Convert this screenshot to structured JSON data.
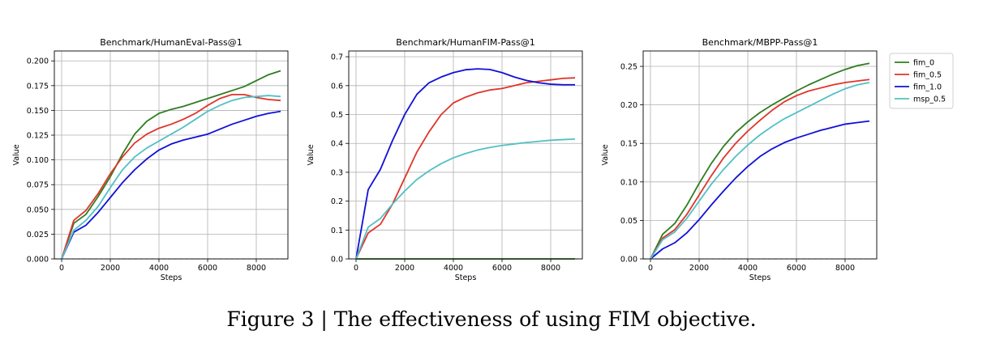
{
  "caption": "Figure 3 | The effectiveness of using FIM objective.",
  "legend": {
    "location": "upper right, outside the third chart",
    "entries": [
      {
        "name": "fim_0",
        "color": "#2e7d1f"
      },
      {
        "name": "fim_0.5",
        "color": "#e0342a"
      },
      {
        "name": "fim_1.0",
        "color": "#1010d8"
      },
      {
        "name": "msp_0.5",
        "color": "#52c0c4"
      }
    ]
  },
  "chart_data": [
    {
      "type": "line",
      "title": "Benchmark/HumanEval-Pass@1",
      "xlabel": "Steps",
      "ylabel": "Value",
      "xlim": [
        -300,
        9300
      ],
      "ylim": [
        0.0,
        0.21
      ],
      "xticks": [
        0,
        2000,
        4000,
        6000,
        8000
      ],
      "xtick_labels": [
        "0",
        "2000",
        "4000",
        "6000",
        "8000"
      ],
      "yticks": [
        0.0,
        0.025,
        0.05,
        0.075,
        0.1,
        0.125,
        0.15,
        0.175,
        0.2
      ],
      "ytick_labels": [
        "0.000",
        "0.025",
        "0.050",
        "0.075",
        "0.100",
        "0.125",
        "0.150",
        "0.175",
        "0.200"
      ],
      "grid": true,
      "series": [
        {
          "name": "fim_0",
          "color": "#2e7d1f",
          "x": [
            0,
            500,
            1000,
            1500,
            2000,
            2500,
            3000,
            3500,
            4000,
            4500,
            5000,
            5500,
            6000,
            6500,
            7000,
            7500,
            8000,
            8500,
            9000
          ],
          "y": [
            0.0,
            0.036,
            0.045,
            0.063,
            0.083,
            0.106,
            0.126,
            0.139,
            0.147,
            0.151,
            0.154,
            0.158,
            0.162,
            0.166,
            0.17,
            0.174,
            0.18,
            0.186,
            0.19
          ]
        },
        {
          "name": "fim_0.5",
          "color": "#e0342a",
          "x": [
            0,
            500,
            1000,
            1500,
            2000,
            2500,
            3000,
            3500,
            4000,
            4500,
            5000,
            5500,
            6000,
            6500,
            7000,
            7500,
            8000,
            8500,
            9000
          ],
          "y": [
            0.0,
            0.039,
            0.049,
            0.066,
            0.086,
            0.103,
            0.117,
            0.126,
            0.132,
            0.136,
            0.141,
            0.147,
            0.155,
            0.162,
            0.166,
            0.166,
            0.163,
            0.161,
            0.16
          ]
        },
        {
          "name": "fim_1.0",
          "color": "#1010d8",
          "x": [
            0,
            500,
            1000,
            1500,
            2000,
            2500,
            3000,
            3500,
            4000,
            4500,
            5000,
            5500,
            6000,
            6500,
            7000,
            7500,
            8000,
            8500,
            9000
          ],
          "y": [
            0.0,
            0.027,
            0.034,
            0.047,
            0.062,
            0.077,
            0.09,
            0.101,
            0.11,
            0.116,
            0.12,
            0.123,
            0.126,
            0.131,
            0.136,
            0.14,
            0.144,
            0.147,
            0.149
          ]
        },
        {
          "name": "msp_0.5",
          "color": "#52c0c4",
          "x": [
            0,
            500,
            1000,
            1500,
            2000,
            2500,
            3000,
            3500,
            4000,
            4500,
            5000,
            5500,
            6000,
            6500,
            7000,
            7500,
            8000,
            8500,
            9000
          ],
          "y": [
            0.0,
            0.029,
            0.039,
            0.053,
            0.072,
            0.09,
            0.103,
            0.112,
            0.119,
            0.126,
            0.133,
            0.141,
            0.149,
            0.155,
            0.16,
            0.163,
            0.164,
            0.165,
            0.164
          ]
        }
      ]
    },
    {
      "type": "line",
      "title": "Benchmark/HumanFIM-Pass@1",
      "xlabel": "Steps",
      "ylabel": "Value",
      "xlim": [
        -300,
        9300
      ],
      "ylim": [
        0.0,
        0.72
      ],
      "xticks": [
        0,
        2000,
        4000,
        6000,
        8000
      ],
      "xtick_labels": [
        "0",
        "2000",
        "4000",
        "6000",
        "8000"
      ],
      "yticks": [
        0.0,
        0.1,
        0.2,
        0.3,
        0.4,
        0.5,
        0.6,
        0.7
      ],
      "ytick_labels": [
        "0.0",
        "0.1",
        "0.2",
        "0.3",
        "0.4",
        "0.5",
        "0.6",
        "0.7"
      ],
      "grid": true,
      "series": [
        {
          "name": "fim_0",
          "color": "#2e7d1f",
          "x": [
            0,
            500,
            1000,
            1500,
            2000,
            2500,
            3000,
            3500,
            4000,
            4500,
            5000,
            5500,
            6000,
            6500,
            7000,
            7500,
            8000,
            8500,
            9000
          ],
          "y": [
            0.0,
            0.0,
            0.0,
            0.0,
            0.0,
            0.0,
            0.0,
            0.0,
            0.0,
            0.0,
            0.0,
            0.0,
            0.0,
            0.0,
            0.0,
            0.0,
            0.0,
            0.0,
            0.0
          ]
        },
        {
          "name": "fim_0.5",
          "color": "#e0342a",
          "x": [
            0,
            500,
            1000,
            1500,
            2000,
            2500,
            3000,
            3500,
            4000,
            4500,
            5000,
            5500,
            6000,
            6500,
            7000,
            7500,
            8000,
            8500,
            9000
          ],
          "y": [
            0.0,
            0.09,
            0.12,
            0.19,
            0.28,
            0.37,
            0.44,
            0.5,
            0.54,
            0.56,
            0.575,
            0.585,
            0.59,
            0.6,
            0.61,
            0.615,
            0.62,
            0.625,
            0.627
          ]
        },
        {
          "name": "fim_1.0",
          "color": "#1010d8",
          "x": [
            0,
            500,
            1000,
            1500,
            2000,
            2500,
            3000,
            3500,
            4000,
            4500,
            5000,
            5500,
            6000,
            6500,
            7000,
            7500,
            8000,
            8500,
            9000
          ],
          "y": [
            0.0,
            0.24,
            0.31,
            0.41,
            0.5,
            0.57,
            0.61,
            0.63,
            0.645,
            0.655,
            0.658,
            0.656,
            0.645,
            0.63,
            0.618,
            0.61,
            0.605,
            0.603,
            0.603
          ]
        },
        {
          "name": "msp_0.5",
          "color": "#52c0c4",
          "x": [
            0,
            500,
            1000,
            1500,
            2000,
            2500,
            3000,
            3500,
            4000,
            4500,
            5000,
            5500,
            6000,
            6500,
            7000,
            7500,
            8000,
            8500,
            9000
          ],
          "y": [
            0.0,
            0.11,
            0.14,
            0.19,
            0.235,
            0.275,
            0.305,
            0.33,
            0.35,
            0.365,
            0.377,
            0.386,
            0.393,
            0.398,
            0.403,
            0.407,
            0.411,
            0.413,
            0.415
          ]
        }
      ]
    },
    {
      "type": "line",
      "title": "Benchmark/MBPP-Pass@1",
      "xlabel": "Steps",
      "ylabel": "Value",
      "xlim": [
        -300,
        9300
      ],
      "ylim": [
        0.0,
        0.27
      ],
      "xticks": [
        0,
        2000,
        4000,
        6000,
        8000
      ],
      "xtick_labels": [
        "0",
        "2000",
        "4000",
        "6000",
        "8000"
      ],
      "yticks": [
        0.0,
        0.05,
        0.1,
        0.15,
        0.2,
        0.25
      ],
      "ytick_labels": [
        "0.00",
        "0.05",
        "0.10",
        "0.15",
        "0.20",
        "0.25"
      ],
      "grid": true,
      "series": [
        {
          "name": "fim_0",
          "color": "#2e7d1f",
          "x": [
            0,
            500,
            1000,
            1500,
            2000,
            2500,
            3000,
            3500,
            4000,
            4500,
            5000,
            5500,
            6000,
            6500,
            7000,
            7500,
            8000,
            8500,
            9000
          ],
          "y": [
            0.0,
            0.032,
            0.046,
            0.07,
            0.098,
            0.124,
            0.146,
            0.164,
            0.178,
            0.19,
            0.2,
            0.209,
            0.218,
            0.226,
            0.233,
            0.24,
            0.246,
            0.251,
            0.254
          ]
        },
        {
          "name": "fim_0.5",
          "color": "#e0342a",
          "x": [
            0,
            500,
            1000,
            1500,
            2000,
            2500,
            3000,
            3500,
            4000,
            4500,
            5000,
            5500,
            6000,
            6500,
            7000,
            7500,
            8000,
            8500,
            9000
          ],
          "y": [
            0.0,
            0.027,
            0.038,
            0.058,
            0.083,
            0.108,
            0.131,
            0.15,
            0.166,
            0.18,
            0.193,
            0.204,
            0.212,
            0.218,
            0.222,
            0.226,
            0.229,
            0.231,
            0.233
          ]
        },
        {
          "name": "fim_1.0",
          "color": "#1010d8",
          "x": [
            0,
            500,
            1000,
            1500,
            2000,
            2500,
            3000,
            3500,
            4000,
            4500,
            5000,
            5500,
            6000,
            6500,
            7000,
            7500,
            8000,
            8500,
            9000
          ],
          "y": [
            0.0,
            0.013,
            0.021,
            0.034,
            0.051,
            0.07,
            0.088,
            0.105,
            0.12,
            0.133,
            0.143,
            0.151,
            0.157,
            0.162,
            0.167,
            0.171,
            0.175,
            0.177,
            0.179
          ]
        },
        {
          "name": "msp_0.5",
          "color": "#52c0c4",
          "x": [
            0,
            500,
            1000,
            1500,
            2000,
            2500,
            3000,
            3500,
            4000,
            4500,
            5000,
            5500,
            6000,
            6500,
            7000,
            7500,
            8000,
            8500,
            9000
          ],
          "y": [
            0.0,
            0.025,
            0.035,
            0.053,
            0.075,
            0.097,
            0.116,
            0.133,
            0.148,
            0.161,
            0.172,
            0.182,
            0.19,
            0.198,
            0.206,
            0.214,
            0.221,
            0.226,
            0.229
          ]
        }
      ]
    }
  ]
}
